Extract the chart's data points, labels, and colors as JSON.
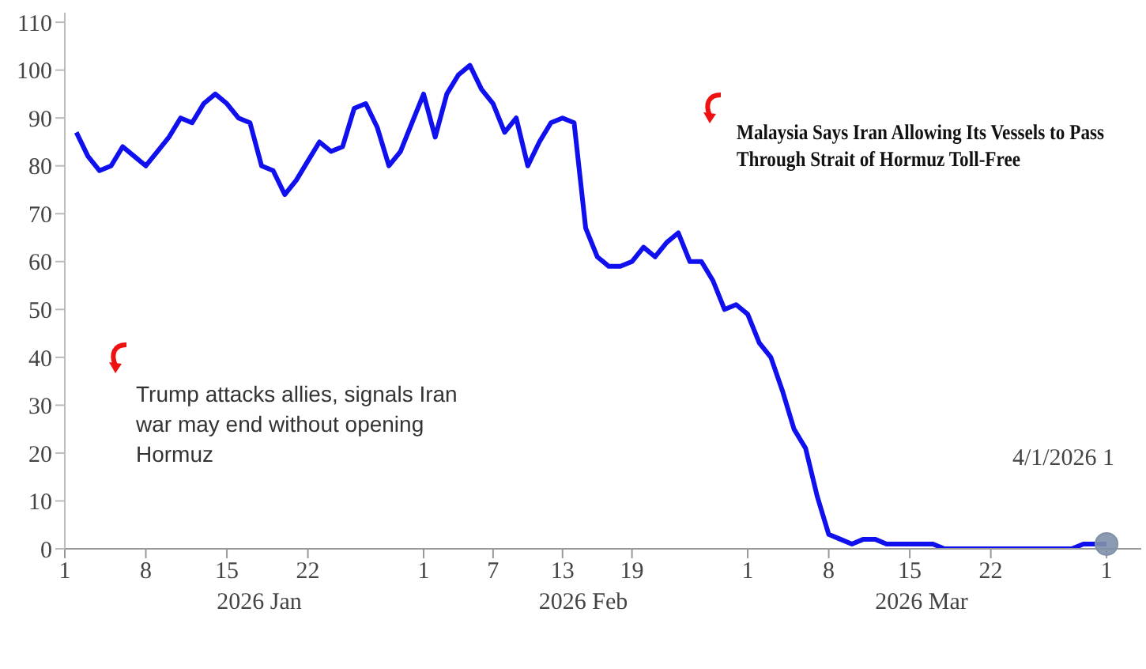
{
  "chart_data": {
    "type": "line",
    "x": [
      "2026-01-02",
      "2026-01-03",
      "2026-01-04",
      "2026-01-05",
      "2026-01-06",
      "2026-01-07",
      "2026-01-08",
      "2026-01-09",
      "2026-01-10",
      "2026-01-11",
      "2026-01-12",
      "2026-01-13",
      "2026-01-14",
      "2026-01-15",
      "2026-01-16",
      "2026-01-17",
      "2026-01-18",
      "2026-01-19",
      "2026-01-20",
      "2026-01-21",
      "2026-01-22",
      "2026-01-23",
      "2026-01-24",
      "2026-01-25",
      "2026-01-26",
      "2026-01-27",
      "2026-01-28",
      "2026-01-29",
      "2026-01-30",
      "2026-01-31",
      "2026-02-01",
      "2026-02-02",
      "2026-02-03",
      "2026-02-04",
      "2026-02-05",
      "2026-02-06",
      "2026-02-07",
      "2026-02-08",
      "2026-02-09",
      "2026-02-10",
      "2026-02-11",
      "2026-02-12",
      "2026-02-13",
      "2026-02-14",
      "2026-02-15",
      "2026-02-16",
      "2026-02-17",
      "2026-02-18",
      "2026-02-19",
      "2026-02-20",
      "2026-02-21",
      "2026-02-22",
      "2026-02-23",
      "2026-02-24",
      "2026-02-25",
      "2026-02-26",
      "2026-02-27",
      "2026-02-28",
      "2026-03-01",
      "2026-03-02",
      "2026-03-03",
      "2026-03-04",
      "2026-03-05",
      "2026-03-06",
      "2026-03-07",
      "2026-03-08",
      "2026-03-09",
      "2026-03-10",
      "2026-03-11",
      "2026-03-12",
      "2026-03-13",
      "2026-03-14",
      "2026-03-15",
      "2026-03-16",
      "2026-03-17",
      "2026-03-18",
      "2026-03-19",
      "2026-03-20",
      "2026-03-21",
      "2026-03-22",
      "2026-03-23",
      "2026-03-24",
      "2026-03-25",
      "2026-03-26",
      "2026-03-27",
      "2026-03-28",
      "2026-03-29",
      "2026-03-30",
      "2026-03-31",
      "2026-04-01"
    ],
    "series": [
      {
        "color": "#1010ee",
        "values": [
          87,
          82,
          79,
          80,
          84,
          82,
          80,
          83,
          86,
          90,
          89,
          93,
          95,
          93,
          90,
          89,
          80,
          79,
          74,
          77,
          81,
          85,
          83,
          84,
          92,
          93,
          88,
          80,
          83,
          89,
          95,
          86,
          95,
          99,
          101,
          96,
          93,
          87,
          90,
          80,
          85,
          89,
          90,
          89,
          67,
          61,
          59,
          59,
          60,
          63,
          61,
          64,
          66,
          60,
          60,
          56,
          50,
          51,
          49,
          43,
          40,
          33,
          25,
          21,
          11,
          3,
          2,
          1,
          2,
          2,
          1,
          1,
          1,
          1,
          1,
          0,
          0,
          0,
          0,
          0,
          0,
          0,
          0,
          0,
          0,
          0,
          0,
          1,
          1,
          1
        ]
      }
    ],
    "xlim": [
      "2026-01-01",
      "2026-04-04"
    ],
    "xticks": [
      {
        "value": "2026-01-01",
        "label": "1"
      },
      {
        "value": "2026-01-08",
        "label": "8"
      },
      {
        "value": "2026-01-15",
        "label": "15"
      },
      {
        "value": "2026-01-22",
        "label": "22"
      },
      {
        "value": "2026-02-01",
        "label": "1"
      },
      {
        "value": "2026-02-07",
        "label": "7"
      },
      {
        "value": "2026-02-13",
        "label": "13"
      },
      {
        "value": "2026-02-19",
        "label": "19"
      },
      {
        "value": "2026-03-01",
        "label": "1"
      },
      {
        "value": "2026-03-08",
        "label": "8"
      },
      {
        "value": "2026-03-15",
        "label": "15"
      },
      {
        "value": "2026-03-22",
        "label": "22"
      },
      {
        "value": "2026-04-01",
        "label": "1"
      }
    ],
    "ylim": [
      0,
      112
    ],
    "yticks": [
      0,
      10,
      20,
      30,
      40,
      50,
      60,
      70,
      80,
      90,
      100,
      110
    ],
    "grid": false,
    "legend": false,
    "marker": "none",
    "line_style": "solid",
    "annotations": [
      "2026 Jan",
      "2026 Feb",
      "2026 Mar",
      "Trump attacks allies, signals Iran war may end without opening Hormuz",
      "Malaysia Says Iran Allowing Its Vessels to Pass Through Strait of Hormuz Toll-Free",
      "4/1/2026 1"
    ]
  }
}
